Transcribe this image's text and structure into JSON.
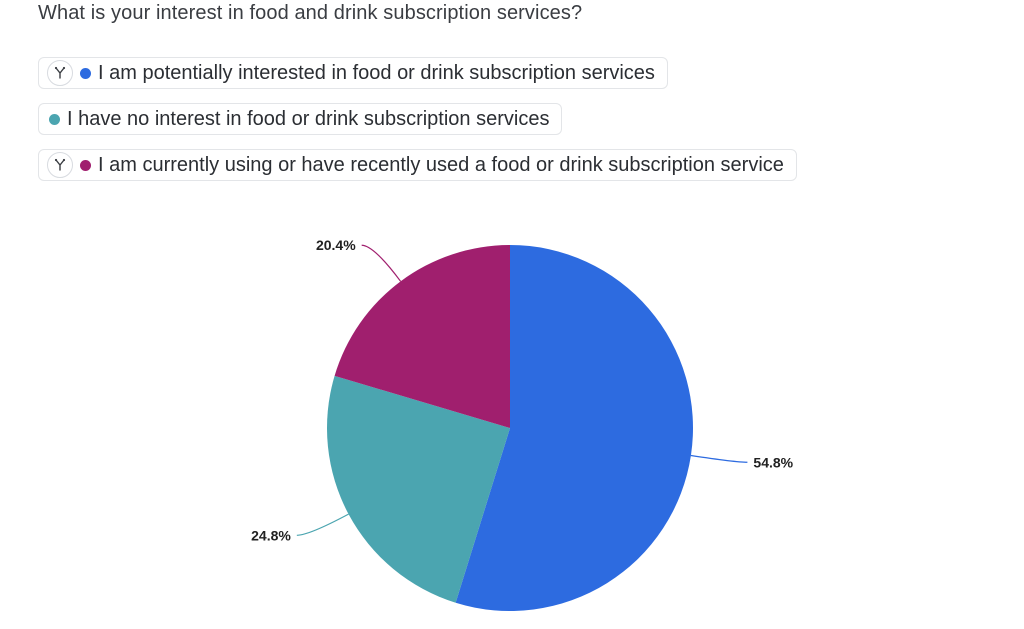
{
  "question": "What is your interest in food and drink subscription services?",
  "legend": [
    {
      "label": "I am potentially interested in food or drink subscription services",
      "color": "#2d6be0",
      "has_filter": true,
      "filter_icon": "branch-icon"
    },
    {
      "label": "I have no interest in food or drink subscription services",
      "color": "#4ba5b0",
      "has_filter": false
    },
    {
      "label": "I am currently using or have recently used a food or drink subscription service",
      "color": "#a01f6e",
      "has_filter": true,
      "filter_icon": "branch-icon"
    }
  ],
  "chart_data": {
    "type": "pie",
    "title": "",
    "slices": [
      {
        "name": "I am potentially interested in food or drink subscription services",
        "value": 54.8,
        "label": "54.8%",
        "color": "#2d6be0"
      },
      {
        "name": "I have no interest in food or drink subscription services",
        "value": 24.8,
        "label": "24.8%",
        "color": "#4ba5b0"
      },
      {
        "name": "I am currently using or have recently used a food or drink subscription service",
        "value": 20.4,
        "label": "20.4%",
        "color": "#a01f6e"
      }
    ],
    "start": "top",
    "direction": "clockwise"
  }
}
